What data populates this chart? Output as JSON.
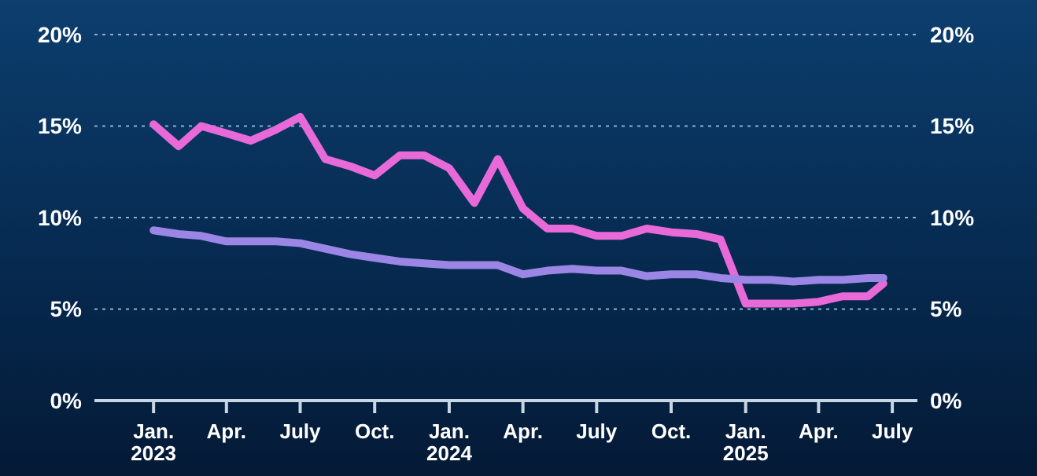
{
  "chart_data": {
    "type": "line",
    "x": [
      "2023-01",
      "2023-02",
      "2023-03",
      "2023-04",
      "2023-05",
      "2023-06",
      "2023-07",
      "2023-08",
      "2023-09",
      "2023-10",
      "2023-11",
      "2023-12",
      "2024-01",
      "2024-02",
      "2024-03",
      "2024-04",
      "2024-05",
      "2024-06",
      "2024-07",
      "2024-08",
      "2024-09",
      "2024-10",
      "2024-11",
      "2024-12",
      "2025-01",
      "2025-02",
      "2025-03",
      "2025-04",
      "2025-05",
      "2025-06",
      "2025-06-20"
    ],
    "series": [
      {
        "color": "#e86ad8",
        "values": [
          15.1,
          13.9,
          15.0,
          14.6,
          14.2,
          14.8,
          15.5,
          13.2,
          12.8,
          12.3,
          13.4,
          13.4,
          12.7,
          10.8,
          13.2,
          10.5,
          9.4,
          9.4,
          9.0,
          9.0,
          9.4,
          9.2,
          9.1,
          8.8,
          5.3,
          5.3,
          5.3,
          5.4,
          5.7,
          5.7,
          6.4
        ]
      },
      {
        "color": "#9b86e6",
        "values": [
          9.3,
          9.1,
          9.0,
          8.7,
          8.7,
          8.7,
          8.6,
          8.3,
          8.0,
          7.8,
          7.6,
          7.5,
          7.4,
          7.4,
          7.4,
          6.9,
          7.1,
          7.2,
          7.1,
          7.1,
          6.8,
          6.9,
          6.9,
          6.7,
          6.6,
          6.6,
          6.5,
          6.6,
          6.6,
          6.7,
          6.7
        ]
      }
    ],
    "xlim": [
      "2022-10-20",
      "2025-08-01"
    ],
    "xticks": [
      {
        "value": "2023-01",
        "label": "Jan.\n2023"
      },
      {
        "value": "2023-04",
        "label": "Apr."
      },
      {
        "value": "2023-07",
        "label": "July"
      },
      {
        "value": "2023-10",
        "label": "Oct."
      },
      {
        "value": "2024-01",
        "label": "Jan.\n2024"
      },
      {
        "value": "2024-04",
        "label": "Apr."
      },
      {
        "value": "2024-07",
        "label": "July"
      },
      {
        "value": "2024-10",
        "label": "Oct."
      },
      {
        "value": "2025-01",
        "label": "Jan.\n2025"
      },
      {
        "value": "2025-04",
        "label": "Apr."
      },
      {
        "value": "2025-07",
        "label": "July"
      }
    ],
    "ylim": [
      0,
      20
    ],
    "yticks": [
      {
        "value": 0,
        "label": "0%"
      },
      {
        "value": 5,
        "label": "5%"
      },
      {
        "value": 10,
        "label": "10%"
      },
      {
        "value": 15,
        "label": "15%"
      },
      {
        "value": 20,
        "label": "20%"
      }
    ],
    "y2lim": [
      0,
      20
    ],
    "y2ticks": [
      {
        "value": 0,
        "label": "0%"
      },
      {
        "value": 5,
        "label": "5%"
      },
      {
        "value": 10,
        "label": "10%"
      },
      {
        "value": 15,
        "label": "15%"
      },
      {
        "value": 20,
        "label": "20%"
      }
    ],
    "grid": "y",
    "marker": "none",
    "line_style": "solid",
    "legend": false
  }
}
